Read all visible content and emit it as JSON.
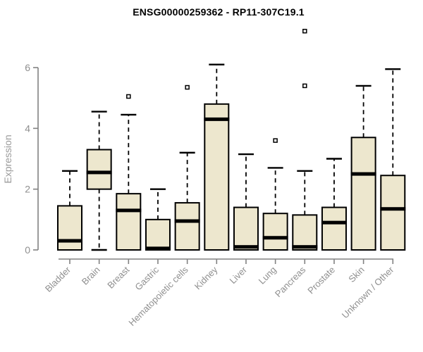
{
  "page": {
    "background": "#ffffff"
  },
  "chart_data": {
    "type": "boxplot",
    "title": "ENSG00000259362 - RP11-307C19.1",
    "ylabel": "Expression",
    "xlabel": "",
    "ylim": [
      0,
      6
    ],
    "yticks": [
      "0",
      "2",
      "4",
      "6"
    ],
    "grid": false,
    "legend": "none",
    "categories": [
      "Bladder",
      "Brain",
      "Breast",
      "Gastric",
      "Hematopoietic cells",
      "Kidney",
      "Liver",
      "Lung",
      "Pancreas",
      "Prostate",
      "Skin",
      "Unknown / Other"
    ],
    "series": [
      {
        "name": "Bladder",
        "whisker_low": 0,
        "q1": 0,
        "median": 0.3,
        "q3": 1.45,
        "whisker_high": 2.6,
        "outliers": []
      },
      {
        "name": "Brain",
        "whisker_low": 0,
        "q1": 2.0,
        "median": 2.55,
        "q3": 3.3,
        "whisker_high": 4.55,
        "outliers": []
      },
      {
        "name": "Breast",
        "whisker_low": 0,
        "q1": 0,
        "median": 1.3,
        "q3": 1.85,
        "whisker_high": 4.45,
        "outliers": [
          5.05
        ]
      },
      {
        "name": "Gastric",
        "whisker_low": 0,
        "q1": 0,
        "median": 0.05,
        "q3": 1.0,
        "whisker_high": 2.0,
        "outliers": []
      },
      {
        "name": "Hematopoietic cells",
        "whisker_low": 0,
        "q1": 0,
        "median": 0.95,
        "q3": 1.55,
        "whisker_high": 3.2,
        "outliers": [
          5.35
        ]
      },
      {
        "name": "Kidney",
        "whisker_low": 0,
        "q1": 0,
        "median": 4.3,
        "q3": 4.8,
        "whisker_high": 6.1,
        "outliers": []
      },
      {
        "name": "Liver",
        "whisker_low": 0,
        "q1": 0,
        "median": 0.1,
        "q3": 1.4,
        "whisker_high": 3.15,
        "outliers": []
      },
      {
        "name": "Lung",
        "whisker_low": 0,
        "q1": 0,
        "median": 0.4,
        "q3": 1.2,
        "whisker_high": 2.7,
        "outliers": [
          3.6
        ]
      },
      {
        "name": "Pancreas",
        "whisker_low": 0,
        "q1": 0,
        "median": 0.1,
        "q3": 1.15,
        "whisker_high": 2.6,
        "outliers": [
          5.4,
          7.2
        ]
      },
      {
        "name": "Prostate",
        "whisker_low": 0,
        "q1": 0,
        "median": 0.9,
        "q3": 1.4,
        "whisker_high": 3.0,
        "outliers": []
      },
      {
        "name": "Skin",
        "whisker_low": 0,
        "q1": 0,
        "median": 2.5,
        "q3": 3.7,
        "whisker_high": 5.4,
        "outliers": []
      },
      {
        "name": "Unknown / Other",
        "whisker_low": 0,
        "q1": 0,
        "median": 1.35,
        "q3": 2.45,
        "whisker_high": 5.95,
        "outliers": []
      }
    ],
    "colors": {
      "box_fill": "#EDE7CE",
      "box_stroke": "#000000",
      "median": "#000000",
      "whisker": "#000000",
      "axis": "#828282",
      "tick_label": "#8f8f8f",
      "axis_label": "#9b9b9b",
      "title": "#000000"
    }
  }
}
